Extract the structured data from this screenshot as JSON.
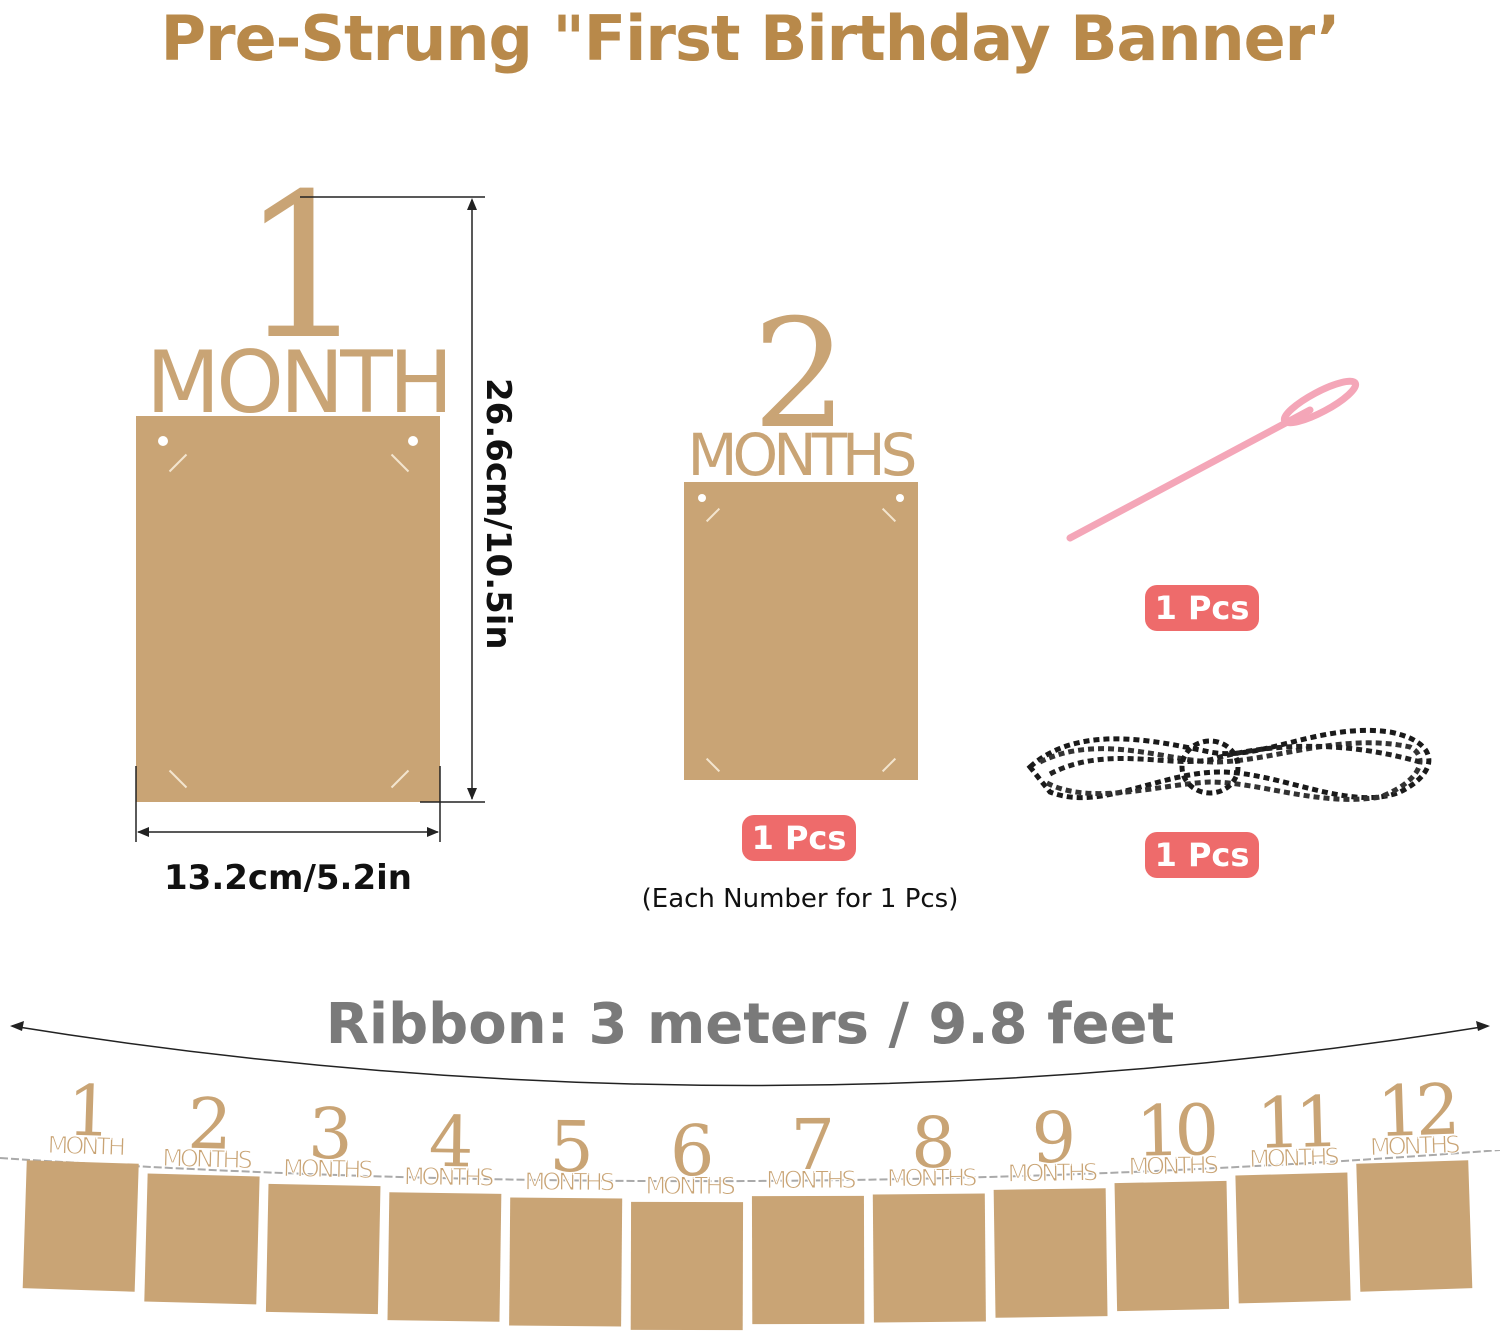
{
  "title": "Pre-Strung \"First Birthday Banner’",
  "large_card": {
    "number": "1",
    "word": "MONTH",
    "height_label": "26.6cm/10.5in",
    "width_label": "13.2cm/5.2in"
  },
  "medium_card": {
    "number": "2",
    "word": "MONTHS",
    "qty": "1 Pcs",
    "note": "(Each Number for 1 Pcs)"
  },
  "needle": {
    "qty": "1 Pcs"
  },
  "twine": {
    "qty": "1 Pcs"
  },
  "ribbon": {
    "label": "Ribbon: 3 meters / 9.8 feet"
  },
  "banner": [
    {
      "num": "1",
      "word": "MONTH"
    },
    {
      "num": "2",
      "word": "MONTHS"
    },
    {
      "num": "3",
      "word": "MONTHS"
    },
    {
      "num": "4",
      "word": "MONTHS"
    },
    {
      "num": "5",
      "word": "MONTHS"
    },
    {
      "num": "6",
      "word": "MONTHS"
    },
    {
      "num": "7",
      "word": "MONTHS"
    },
    {
      "num": "8",
      "word": "MONTHS"
    },
    {
      "num": "9",
      "word": "MONTHS"
    },
    {
      "num": "10",
      "word": "MONTHS"
    },
    {
      "num": "11",
      "word": "MONTHS"
    },
    {
      "num": "12",
      "word": "MONTHS"
    }
  ],
  "colors": {
    "kraft": "#c9a475",
    "title": "#b8894a",
    "badge": "#ee6b6b",
    "needle": "#f4a6b8",
    "ribbon_label": "#7a7a7a"
  }
}
